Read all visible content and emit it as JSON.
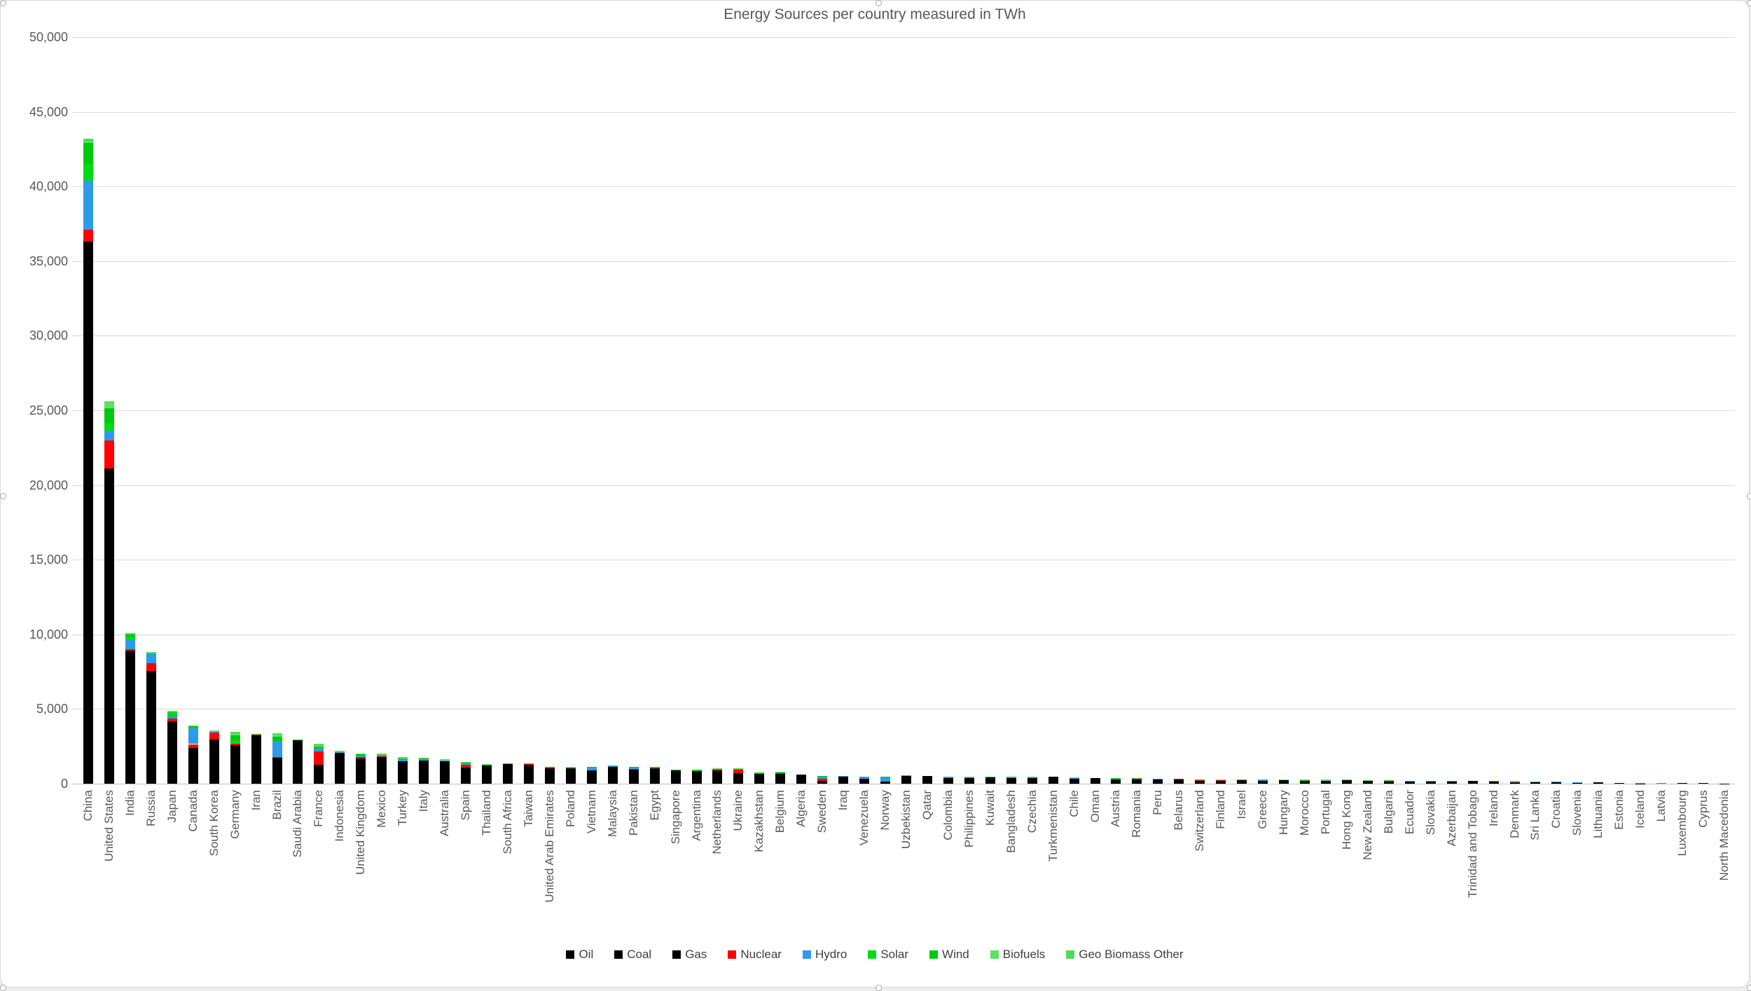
{
  "chart_data": {
    "type": "bar",
    "stacked": true,
    "title": "Energy Sources per country measured in TWh",
    "xlabel": "",
    "ylabel": "",
    "ylim": [
      0,
      50000
    ],
    "ytick_step": 5000,
    "y_tick_labels": [
      "0",
      "5,000",
      "10,000",
      "15,000",
      "20,000",
      "25,000",
      "30,000",
      "35,000",
      "40,000",
      "45,000",
      "50,000"
    ],
    "grid": true,
    "legend_position": "bottom",
    "categories": [
      "China",
      "United States",
      "India",
      "Russia",
      "Japan",
      "Canada",
      "South Korea",
      "Germany",
      "Iran",
      "Brazil",
      "Saudi Arabia",
      "France",
      "Indonesia",
      "United Kingdom",
      "Mexico",
      "Turkey",
      "Italy",
      "Australia",
      "Spain",
      "Thailand",
      "South Africa",
      "Taiwan",
      "United Arab Emirates",
      "Poland",
      "Vietnam",
      "Malaysia",
      "Pakistan",
      "Egypt",
      "Singapore",
      "Argentina",
      "Netherlands",
      "Ukraine",
      "Kazakhstan",
      "Belgium",
      "Algeria",
      "Sweden",
      "Iraq",
      "Venezuela",
      "Norway",
      "Uzbekistan",
      "Qatar",
      "Colombia",
      "Philippines",
      "Kuwait",
      "Bangladesh",
      "Czechia",
      "Turkmenistan",
      "Chile",
      "Oman",
      "Austria",
      "Romania",
      "Peru",
      "Belarus",
      "Switzerland",
      "Finland",
      "Israel",
      "Greece",
      "Hungary",
      "Morocco",
      "Portugal",
      "Hong Kong",
      "New Zealand",
      "Bulgaria",
      "Ecuador",
      "Slovakia",
      "Azerbaijan",
      "Trinidad and Tobago",
      "Ireland",
      "Denmark",
      "Sri Lanka",
      "Croatia",
      "Slovenia",
      "Lithuania",
      "Estonia",
      "Iceland",
      "Latvia",
      "Luxembourg",
      "Cyprus",
      "North Macedonia"
    ],
    "series": [
      {
        "name": "Oil",
        "color": "#000000",
        "values": [
          8500,
          10300,
          2600,
          2000,
          1950,
          1230,
          1450,
          1200,
          950,
          1250,
          1800,
          780,
          900,
          750,
          900,
          560,
          640,
          550,
          630,
          600,
          310,
          500,
          470,
          370,
          280,
          420,
          440,
          400,
          740,
          350,
          500,
          250,
          190,
          390,
          180,
          170,
          430,
          230,
          90,
          60,
          130,
          200,
          200,
          290,
          120,
          190,
          120,
          180,
          130,
          140,
          130,
          130,
          130,
          130,
          130,
          130,
          160,
          100,
          160,
          140,
          150,
          90,
          90,
          140,
          70,
          80,
          30,
          90,
          90,
          90,
          60,
          40,
          60,
          30,
          20,
          30,
          35,
          28,
          15
        ]
      },
      {
        "name": "Coal",
        "color": "#000000",
        "values": [
          24000,
          2800,
          5500,
          1000,
          1350,
          230,
          850,
          640,
          30,
          180,
          5,
          70,
          900,
          60,
          180,
          470,
          110,
          550,
          50,
          250,
          960,
          480,
          30,
          470,
          490,
          390,
          180,
          10,
          10,
          20,
          90,
          250,
          380,
          30,
          5,
          20,
          0,
          0,
          5,
          30,
          0,
          120,
          180,
          0,
          40,
          110,
          0,
          90,
          0,
          30,
          60,
          10,
          5,
          1,
          30,
          60,
          30,
          30,
          70,
          5,
          60,
          30,
          60,
          0,
          20,
          0,
          0,
          10,
          20,
          20,
          5,
          10,
          2,
          25,
          1,
          0,
          1,
          0,
          8
        ]
      },
      {
        "name": "Gas",
        "color": "#000000",
        "values": [
          3800,
          8000,
          800,
          4570,
          870,
          920,
          660,
          750,
          2290,
          320,
          1150,
          410,
          280,
          900,
          740,
          470,
          810,
          400,
          420,
          400,
          50,
          300,
          550,
          220,
          130,
          330,
          310,
          640,
          160,
          480,
          360,
          200,
          130,
          230,
          440,
          10,
          90,
          100,
          25,
          450,
          385,
          60,
          40,
          155,
          280,
          70,
          330,
          70,
          245,
          110,
          110,
          130,
          155,
          40,
          20,
          90,
          50,
          90,
          10,
          55,
          45,
          50,
          20,
          10,
          40,
          95,
          140,
          50,
          10,
          0,
          35,
          10,
          20,
          5,
          0,
          10,
          5,
          0,
          2
        ]
      },
      {
        "name": "Nuclear",
        "color": "#ff0000",
        "values": [
          800,
          1900,
          100,
          490,
          200,
          270,
          490,
          90,
          10,
          40,
          0,
          920,
          0,
          120,
          30,
          0,
          0,
          0,
          150,
          0,
          30,
          70,
          50,
          0,
          0,
          0,
          40,
          0,
          0,
          20,
          10,
          250,
          0,
          90,
          0,
          140,
          0,
          0,
          0,
          0,
          0,
          0,
          0,
          0,
          0,
          60,
          0,
          0,
          0,
          0,
          20,
          0,
          15,
          50,
          60,
          0,
          0,
          40,
          0,
          0,
          0,
          0,
          40,
          0,
          40,
          0,
          0,
          0,
          0,
          0,
          0,
          15,
          0,
          0,
          0,
          0,
          0,
          0,
          0
        ]
      },
      {
        "name": "Hydro",
        "color": "#2d9be8",
        "values": [
          3300,
          620,
          630,
          680,
          150,
          1100,
          10,
          50,
          40,
          1070,
          0,
          145,
          60,
          15,
          80,
          170,
          80,
          40,
          60,
          20,
          5,
          5,
          0,
          5,
          180,
          60,
          130,
          40,
          0,
          30,
          0,
          30,
          20,
          1,
          0,
          170,
          10,
          150,
          350,
          15,
          0,
          80,
          10,
          0,
          5,
          5,
          0,
          40,
          0,
          80,
          40,
          40,
          1,
          70,
          30,
          0,
          10,
          1,
          2,
          20,
          0,
          50,
          10,
          25,
          10,
          5,
          0,
          2,
          0,
          15,
          20,
          10,
          2,
          0,
          15,
          5,
          1,
          0,
          3
        ]
      },
      {
        "name": "Solar",
        "color": "#00db13",
        "values": [
          1100,
          550,
          200,
          10,
          250,
          20,
          50,
          160,
          5,
          60,
          5,
          50,
          2,
          30,
          25,
          30,
          40,
          40,
          50,
          10,
          5,
          5,
          15,
          15,
          25,
          5,
          10,
          10,
          5,
          5,
          25,
          20,
          5,
          15,
          3,
          5,
          3,
          1,
          1,
          3,
          3,
          3,
          3,
          3,
          3,
          5,
          0,
          20,
          3,
          5,
          5,
          3,
          1,
          5,
          2,
          8,
          15,
          10,
          5,
          10,
          1,
          1,
          5,
          1,
          2,
          0,
          0,
          1,
          3,
          2,
          1,
          2,
          1,
          2,
          0,
          0,
          1,
          2,
          1
        ]
      },
      {
        "name": "Wind",
        "color": "#00c80e",
        "values": [
          1400,
          950,
          180,
          10,
          30,
          80,
          10,
          350,
          3,
          200,
          2,
          100,
          1,
          100,
          25,
          40,
          30,
          30,
          80,
          5,
          5,
          3,
          1,
          30,
          10,
          1,
          5,
          15,
          0,
          10,
          25,
          10,
          3,
          15,
          1,
          15,
          0,
          1,
          10,
          1,
          0,
          1,
          1,
          0,
          0,
          1,
          0,
          10,
          1,
          10,
          10,
          3,
          1,
          1,
          20,
          1,
          12,
          2,
          10,
          20,
          0,
          5,
          2,
          0,
          0,
          0,
          0,
          12,
          30,
          1,
          3,
          0,
          3,
          2,
          0,
          1,
          1,
          0,
          0
        ]
      },
      {
        "name": "Biofuels",
        "color": "#5be266",
        "values": [
          100,
          400,
          40,
          10,
          60,
          20,
          15,
          120,
          1,
          230,
          1,
          100,
          20,
          25,
          5,
          5,
          20,
          5,
          10,
          15,
          2,
          1,
          2,
          15,
          3,
          2,
          3,
          2,
          3,
          3,
          5,
          5,
          1,
          5,
          0,
          3,
          1,
          1,
          2,
          0,
          1,
          3,
          1,
          1,
          1,
          5,
          0,
          5,
          0,
          3,
          3,
          2,
          1,
          2,
          5,
          0,
          2,
          4,
          1,
          5,
          1,
          1,
          2,
          1,
          2,
          0,
          0,
          2,
          10,
          1,
          1,
          1,
          1,
          3,
          0,
          2,
          1,
          0,
          0
        ]
      },
      {
        "name": "Geo Biomass Other",
        "color": "#4edd58",
        "values": [
          200,
          80,
          20,
          30,
          40,
          10,
          10,
          90,
          1,
          50,
          1,
          95,
          40,
          10,
          10,
          25,
          20,
          5,
          6,
          5,
          3,
          1,
          2,
          5,
          2,
          2,
          2,
          3,
          2,
          2,
          5,
          5,
          1,
          4,
          1,
          2,
          1,
          2,
          2,
          1,
          1,
          3,
          25,
          1,
          1,
          4,
          0,
          5,
          1,
          2,
          2,
          2,
          1,
          1,
          3,
          1,
          1,
          3,
          2,
          5,
          1,
          13,
          1,
          1,
          1,
          0,
          0,
          3,
          7,
          1,
          1,
          2,
          1,
          3,
          20,
          2,
          0,
          0,
          1
        ]
      }
    ]
  }
}
